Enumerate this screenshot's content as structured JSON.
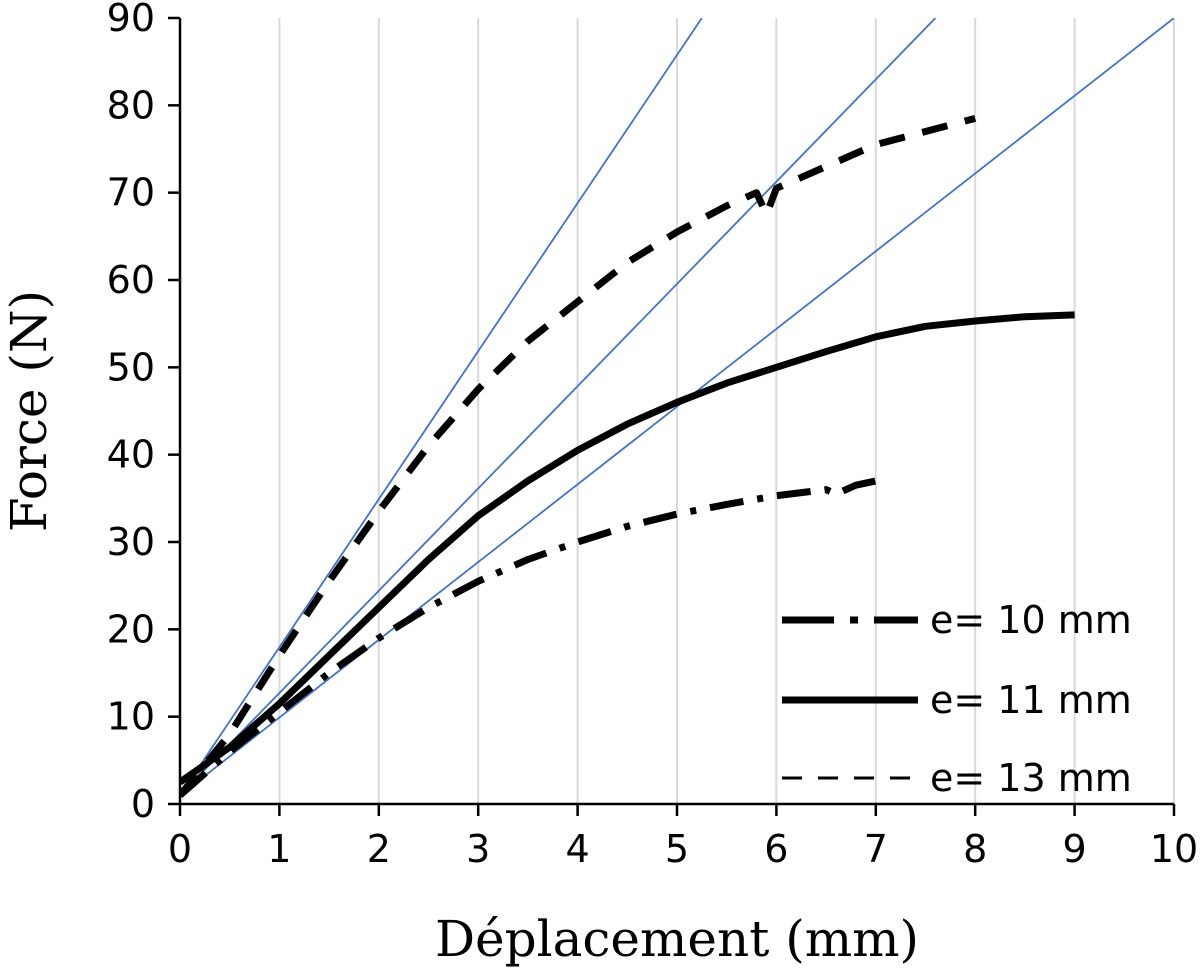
{
  "chart_data": {
    "type": "line",
    "title": "",
    "xlabel": "Déplacement (mm)",
    "ylabel": "Force (N)",
    "xlim": [
      0,
      10
    ],
    "ylim": [
      0,
      90
    ],
    "x_ticks": [
      0,
      1,
      2,
      3,
      4,
      5,
      6,
      7,
      8,
      9,
      10
    ],
    "y_ticks": [
      0,
      10,
      20,
      30,
      40,
      50,
      60,
      70,
      80,
      90
    ],
    "x_tick_labels": [
      "0",
      "1",
      "2",
      "3",
      "4",
      "5",
      "6",
      "7",
      "8",
      "9",
      "10"
    ],
    "y_tick_labels": [
      "0",
      "10",
      "20",
      "30",
      "40",
      "50",
      "60",
      "70",
      "80",
      "90"
    ],
    "grid": {
      "vertical": true,
      "horizontal": false
    },
    "legend_position": "bottom-right",
    "series": [
      {
        "name": "e= 10 mm",
        "style": "dash-dot",
        "color": "#000000",
        "x": [
          0,
          0.5,
          1.0,
          1.5,
          2.0,
          2.5,
          3.0,
          3.5,
          4.0,
          4.5,
          5.0,
          5.5,
          6.0,
          6.5,
          6.6,
          6.8,
          7.0
        ],
        "y": [
          1.0,
          6.0,
          10.5,
          15.0,
          19.0,
          22.5,
          25.5,
          28.0,
          30.0,
          31.8,
          33.2,
          34.3,
          35.3,
          36.0,
          35.5,
          36.5,
          37.0
        ]
      },
      {
        "name": "e= 11 mm",
        "style": "solid",
        "color": "#000000",
        "x": [
          0,
          0.5,
          1.0,
          1.5,
          2.0,
          2.5,
          3.0,
          3.5,
          4.0,
          4.5,
          5.0,
          5.5,
          6.0,
          6.5,
          7.0,
          7.5,
          8.0,
          8.5,
          9.0
        ],
        "y": [
          2.5,
          6.5,
          11.5,
          17.0,
          22.5,
          28.0,
          33.0,
          37.0,
          40.5,
          43.5,
          46.0,
          48.2,
          50.0,
          51.8,
          53.5,
          54.7,
          55.3,
          55.8,
          56.0
        ]
      },
      {
        "name": "e= 13 mm",
        "style": "dashed",
        "color": "#000000",
        "x": [
          0,
          0.5,
          1.0,
          1.5,
          2.0,
          2.5,
          3.0,
          3.5,
          4.0,
          4.5,
          5.0,
          5.5,
          5.8,
          5.9,
          6.0,
          6.5,
          7.0,
          7.5,
          8.0
        ],
        "y": [
          1.0,
          8.0,
          17.0,
          25.5,
          33.5,
          41.0,
          47.5,
          53.0,
          57.5,
          62.0,
          65.5,
          68.5,
          70.0,
          67.5,
          70.5,
          73.0,
          75.5,
          77.0,
          78.5
        ]
      }
    ],
    "reference_lines": [
      {
        "color": "#4472C4",
        "x": [
          0,
          5.25
        ],
        "y": [
          1,
          90
        ]
      },
      {
        "color": "#4472C4",
        "x": [
          0,
          7.6
        ],
        "y": [
          1,
          90
        ]
      },
      {
        "color": "#4472C4",
        "x": [
          0,
          10
        ],
        "y": [
          1,
          90
        ]
      }
    ]
  }
}
